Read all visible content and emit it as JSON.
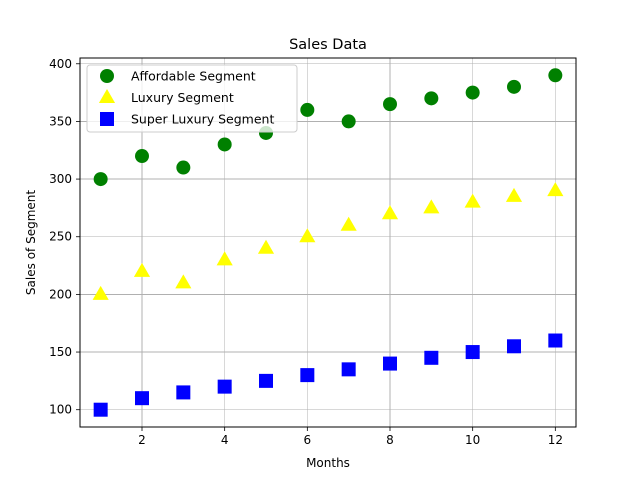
{
  "chart_data": {
    "type": "scatter",
    "title": "Sales Data",
    "xlabel": "Months",
    "ylabel": "Sales of Segment",
    "xlim": [
      0.5,
      12.5
    ],
    "ylim": [
      85,
      405
    ],
    "xticks": [
      2,
      4,
      6,
      8,
      10,
      12
    ],
    "yticks": [
      100,
      150,
      200,
      250,
      300,
      350,
      400
    ],
    "grid": true,
    "legend_position": "top-left",
    "x": [
      1,
      2,
      3,
      4,
      5,
      6,
      7,
      8,
      9,
      10,
      11,
      12
    ],
    "series": [
      {
        "name": "Affordable Segment",
        "color": "#008000",
        "marker": "circle",
        "values": [
          300,
          320,
          310,
          330,
          340,
          360,
          350,
          365,
          370,
          375,
          380,
          390
        ]
      },
      {
        "name": "Luxury Segment",
        "color": "#ffff00",
        "marker": "triangle",
        "values": [
          200,
          220,
          210,
          230,
          240,
          250,
          260,
          270,
          275,
          280,
          285,
          290
        ]
      },
      {
        "name": "Super Luxury Segment",
        "color": "#0000ff",
        "marker": "square",
        "values": [
          100,
          110,
          115,
          120,
          125,
          130,
          135,
          140,
          145,
          150,
          155,
          160
        ]
      }
    ]
  }
}
